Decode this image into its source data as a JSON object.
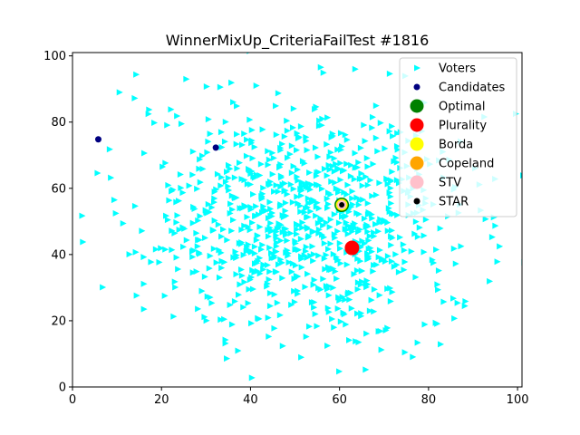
{
  "chart_data": {
    "type": "scatter",
    "title": "WinnerMixUp_CriteriaFailTest #1816",
    "xlabel": "",
    "ylabel": "",
    "xlim": [
      0,
      101
    ],
    "ylim": [
      0,
      101
    ],
    "xticks": [
      0,
      20,
      40,
      60,
      80,
      100
    ],
    "yticks": [
      0,
      20,
      40,
      60,
      80,
      100
    ],
    "grid": false,
    "legend_position": "top-right",
    "voters": {
      "name": "Voters",
      "color": "#00ffff",
      "marker": "triangle-right",
      "count": 900,
      "center": [
        52,
        50
      ],
      "spread": 18
    },
    "series": [
      {
        "name": "Candidates",
        "color": "#000080",
        "marker": "circle",
        "points": [
          [
            5.8,
            74.8
          ],
          [
            32.2,
            72.3
          ],
          [
            60.5,
            55.0
          ],
          [
            62.8,
            42.0
          ]
        ]
      },
      {
        "name": "Optimal",
        "color": "#008000",
        "marker": "circle-large",
        "points": [
          [
            60.5,
            55.0
          ]
        ]
      },
      {
        "name": "Plurality",
        "color": "#ff0000",
        "marker": "circle-large",
        "points": [
          [
            62.8,
            42.0
          ]
        ]
      },
      {
        "name": "Borda",
        "color": "#ffff00",
        "marker": "circle-medium",
        "points": [
          [
            60.5,
            55.0
          ]
        ]
      },
      {
        "name": "Copeland",
        "color": "#ffa500",
        "marker": "circle-small",
        "points": [
          [
            60.5,
            55.0
          ]
        ]
      },
      {
        "name": "STV",
        "color": "#ffc0cb",
        "marker": "circle-small",
        "points": [
          [
            60.5,
            55.0
          ]
        ]
      },
      {
        "name": "STAR",
        "color": "#000000",
        "marker": "circle-tiny",
        "points": [
          [
            60.5,
            55.0
          ]
        ]
      }
    ]
  }
}
